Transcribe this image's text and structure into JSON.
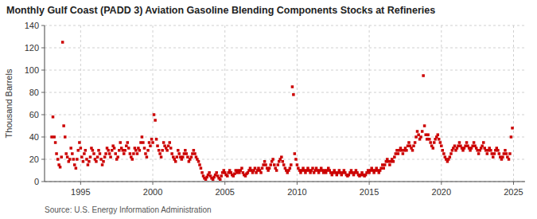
{
  "chart_data": {
    "type": "scatter",
    "title": "Monthly Gulf Coast (PADD 3) Aviation Gasoline Blending Components Stocks at Refineries",
    "y_label": "Thousand Barrels",
    "annotations": [
      "Source: U.S. Energy Information Administration"
    ],
    "color": "#cc0000",
    "marker": "square",
    "grid": true,
    "xlim": [
      1992.5,
      2025.8
    ],
    "ylim": [
      0,
      140
    ],
    "xticks": [
      1995,
      2000,
      2005,
      2010,
      2015,
      2020,
      2025
    ],
    "yticks": [
      0,
      20,
      40,
      60,
      80,
      100,
      120,
      140
    ],
    "x": [
      1993.0,
      1993.08,
      1993.17,
      1993.25,
      1993.33,
      1993.42,
      1993.5,
      1993.58,
      1993.67,
      1993.75,
      1993.83,
      1993.92,
      1994.0,
      1994.08,
      1994.17,
      1994.25,
      1994.33,
      1994.42,
      1994.5,
      1994.58,
      1994.67,
      1994.75,
      1994.83,
      1994.92,
      1995.0,
      1995.08,
      1995.17,
      1995.25,
      1995.33,
      1995.42,
      1995.5,
      1995.58,
      1995.67,
      1995.75,
      1995.83,
      1995.92,
      1996.0,
      1996.08,
      1996.17,
      1996.25,
      1996.33,
      1996.42,
      1996.5,
      1996.58,
      1996.67,
      1996.75,
      1996.83,
      1996.92,
      1997.0,
      1997.08,
      1997.17,
      1997.25,
      1997.33,
      1997.42,
      1997.5,
      1997.58,
      1997.67,
      1997.75,
      1997.83,
      1997.92,
      1998.0,
      1998.08,
      1998.17,
      1998.25,
      1998.33,
      1998.42,
      1998.5,
      1998.58,
      1998.67,
      1998.75,
      1998.83,
      1998.92,
      1999.0,
      1999.08,
      1999.17,
      1999.25,
      1999.33,
      1999.42,
      1999.5,
      1999.58,
      1999.67,
      1999.75,
      1999.83,
      1999.92,
      2000.0,
      2000.08,
      2000.17,
      2000.25,
      2000.33,
      2000.42,
      2000.5,
      2000.58,
      2000.67,
      2000.75,
      2000.83,
      2000.92,
      2001.0,
      2001.08,
      2001.17,
      2001.25,
      2001.33,
      2001.42,
      2001.5,
      2001.58,
      2001.67,
      2001.75,
      2001.83,
      2001.92,
      2002.0,
      2002.08,
      2002.17,
      2002.25,
      2002.33,
      2002.42,
      2002.5,
      2002.58,
      2002.67,
      2002.75,
      2002.83,
      2002.92,
      2003.0,
      2003.08,
      2003.17,
      2003.25,
      2003.33,
      2003.42,
      2003.5,
      2003.58,
      2003.67,
      2003.75,
      2003.83,
      2003.92,
      2004.0,
      2004.08,
      2004.17,
      2004.25,
      2004.33,
      2004.42,
      2004.5,
      2004.58,
      2004.67,
      2004.75,
      2004.83,
      2004.92,
      2005.0,
      2005.08,
      2005.17,
      2005.25,
      2005.33,
      2005.42,
      2005.5,
      2005.58,
      2005.67,
      2005.75,
      2005.83,
      2005.92,
      2006.0,
      2006.08,
      2006.17,
      2006.25,
      2006.33,
      2006.42,
      2006.5,
      2006.58,
      2006.67,
      2006.75,
      2006.83,
      2006.92,
      2007.0,
      2007.08,
      2007.17,
      2007.25,
      2007.33,
      2007.42,
      2007.5,
      2007.58,
      2007.67,
      2007.75,
      2007.83,
      2007.92,
      2008.0,
      2008.08,
      2008.17,
      2008.25,
      2008.33,
      2008.42,
      2008.5,
      2008.58,
      2008.67,
      2008.75,
      2008.83,
      2008.92,
      2009.0,
      2009.08,
      2009.17,
      2009.25,
      2009.33,
      2009.42,
      2009.5,
      2009.58,
      2009.67,
      2009.75,
      2009.83,
      2009.92,
      2010.0,
      2010.08,
      2010.17,
      2010.25,
      2010.33,
      2010.42,
      2010.5,
      2010.58,
      2010.67,
      2010.75,
      2010.83,
      2010.92,
      2011.0,
      2011.08,
      2011.17,
      2011.25,
      2011.33,
      2011.42,
      2011.5,
      2011.58,
      2011.67,
      2011.75,
      2011.83,
      2011.92,
      2012.0,
      2012.08,
      2012.17,
      2012.25,
      2012.33,
      2012.42,
      2012.5,
      2012.58,
      2012.67,
      2012.75,
      2012.83,
      2012.92,
      2013.0,
      2013.08,
      2013.17,
      2013.25,
      2013.33,
      2013.42,
      2013.5,
      2013.58,
      2013.67,
      2013.75,
      2013.83,
      2013.92,
      2014.0,
      2014.08,
      2014.17,
      2014.25,
      2014.33,
      2014.42,
      2014.5,
      2014.58,
      2014.67,
      2014.75,
      2014.83,
      2014.92,
      2015.0,
      2015.08,
      2015.17,
      2015.25,
      2015.33,
      2015.42,
      2015.5,
      2015.58,
      2015.67,
      2015.75,
      2015.83,
      2015.92,
      2016.0,
      2016.08,
      2016.17,
      2016.25,
      2016.33,
      2016.42,
      2016.5,
      2016.58,
      2016.67,
      2016.75,
      2016.83,
      2016.92,
      2017.0,
      2017.08,
      2017.17,
      2017.25,
      2017.33,
      2017.42,
      2017.5,
      2017.58,
      2017.67,
      2017.75,
      2017.83,
      2017.92,
      2018.0,
      2018.08,
      2018.17,
      2018.25,
      2018.33,
      2018.42,
      2018.5,
      2018.58,
      2018.67,
      2018.75,
      2018.83,
      2018.92,
      2019.0,
      2019.08,
      2019.17,
      2019.25,
      2019.33,
      2019.42,
      2019.5,
      2019.58,
      2019.67,
      2019.75,
      2019.83,
      2019.92,
      2020.0,
      2020.08,
      2020.17,
      2020.25,
      2020.33,
      2020.42,
      2020.5,
      2020.58,
      2020.67,
      2020.75,
      2020.83,
      2020.92,
      2021.0,
      2021.08,
      2021.17,
      2021.25,
      2021.33,
      2021.42,
      2021.5,
      2021.58,
      2021.67,
      2021.75,
      2021.83,
      2021.92,
      2022.0,
      2022.08,
      2022.17,
      2022.25,
      2022.33,
      2022.42,
      2022.5,
      2022.58,
      2022.67,
      2022.75,
      2022.83,
      2022.92,
      2023.0,
      2023.08,
      2023.17,
      2023.25,
      2023.33,
      2023.42,
      2023.5,
      2023.58,
      2023.67,
      2023.75,
      2023.83,
      2023.92,
      2024.0,
      2024.08,
      2024.17,
      2024.25,
      2024.33,
      2024.42,
      2024.5,
      2024.58,
      2024.67,
      2024.75,
      2024.83,
      2024.92
    ],
    "values": [
      40,
      58,
      40,
      35,
      25,
      20,
      15,
      13,
      22,
      125,
      50,
      40,
      25,
      22,
      18,
      20,
      30,
      25,
      20,
      15,
      12,
      20,
      28,
      35,
      30,
      22,
      18,
      25,
      28,
      20,
      15,
      18,
      22,
      30,
      28,
      25,
      20,
      18,
      22,
      28,
      25,
      20,
      15,
      18,
      22,
      25,
      30,
      28,
      25,
      22,
      28,
      32,
      30,
      25,
      20,
      22,
      28,
      35,
      30,
      28,
      25,
      28,
      32,
      35,
      30,
      25,
      22,
      20,
      25,
      30,
      28,
      25,
      30,
      28,
      35,
      40,
      35,
      30,
      25,
      22,
      28,
      35,
      32,
      38,
      35,
      60,
      55,
      38,
      32,
      28,
      25,
      22,
      28,
      35,
      32,
      30,
      28,
      32,
      35,
      30,
      25,
      22,
      20,
      18,
      22,
      28,
      25,
      22,
      20,
      22,
      25,
      28,
      25,
      22,
      18,
      20,
      22,
      25,
      28,
      25,
      22,
      20,
      18,
      15,
      12,
      8,
      5,
      3,
      2,
      4,
      6,
      8,
      5,
      3,
      2,
      4,
      6,
      8,
      5,
      3,
      2,
      5,
      8,
      10,
      8,
      6,
      5,
      8,
      10,
      8,
      6,
      5,
      7,
      10,
      8,
      10,
      8,
      10,
      12,
      8,
      6,
      5,
      7,
      8,
      10,
      12,
      10,
      8,
      10,
      12,
      8,
      10,
      12,
      10,
      8,
      12,
      15,
      18,
      15,
      12,
      10,
      12,
      15,
      18,
      20,
      15,
      12,
      10,
      15,
      18,
      20,
      22,
      18,
      15,
      12,
      10,
      8,
      10,
      12,
      15,
      85,
      78,
      25,
      20,
      15,
      12,
      10,
      8,
      10,
      12,
      10,
      8,
      10,
      12,
      10,
      8,
      10,
      12,
      8,
      10,
      12,
      10,
      8,
      10,
      12,
      10,
      8,
      10,
      8,
      10,
      12,
      10,
      8,
      6,
      8,
      10,
      8,
      6,
      8,
      10,
      8,
      6,
      8,
      10,
      8,
      6,
      5,
      6,
      8,
      10,
      8,
      6,
      8,
      10,
      8,
      6,
      5,
      6,
      8,
      6,
      5,
      6,
      8,
      10,
      8,
      10,
      12,
      10,
      8,
      10,
      12,
      10,
      8,
      10,
      12,
      15,
      12,
      15,
      18,
      20,
      18,
      15,
      18,
      20,
      18,
      22,
      25,
      28,
      25,
      28,
      30,
      28,
      25,
      28,
      30,
      28,
      32,
      35,
      32,
      30,
      28,
      32,
      35,
      40,
      45,
      42,
      38,
      40,
      45,
      95,
      50,
      42,
      38,
      42,
      38,
      35,
      32,
      30,
      35,
      38,
      40,
      42,
      38,
      35,
      32,
      28,
      25,
      22,
      20,
      18,
      20,
      22,
      25,
      28,
      30,
      32,
      28,
      30,
      32,
      35,
      32,
      30,
      28,
      30,
      32,
      35,
      32,
      30,
      28,
      30,
      32,
      35,
      32,
      30,
      28,
      25,
      28,
      30,
      32,
      35,
      30,
      28,
      25,
      28,
      30,
      28,
      25,
      22,
      25,
      28,
      30,
      28,
      25,
      22,
      20,
      22,
      25,
      28,
      25,
      22,
      20,
      25,
      40,
      48
    ]
  }
}
